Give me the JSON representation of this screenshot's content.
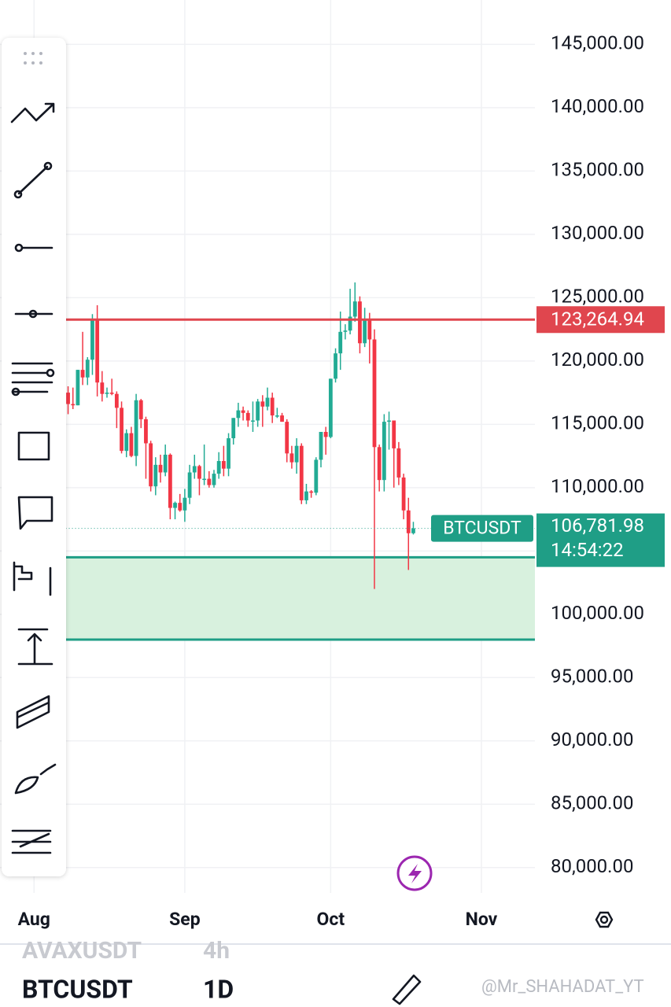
{
  "chart_data": {
    "type": "candlestick",
    "symbol": "BTCUSDT",
    "countdown": "14:54:22",
    "up_color": "#22ab94",
    "down_color": "#f23645",
    "x": [
      7,
      8,
      9,
      10,
      11,
      12,
      13,
      14,
      15,
      16,
      17,
      18,
      19,
      20,
      21,
      22,
      23,
      24,
      25,
      26,
      27,
      28,
      29,
      30,
      31,
      32,
      33,
      34,
      35,
      36,
      37,
      38,
      39,
      40,
      41,
      42,
      43,
      44,
      45,
      46,
      47,
      48,
      49,
      50,
      51,
      52,
      53,
      54,
      55,
      56,
      57,
      58,
      59,
      60,
      61,
      62,
      63,
      64,
      65,
      66,
      67,
      68,
      69,
      70,
      71,
      72,
      73,
      74,
      75,
      76,
      77,
      78
    ],
    "open": [
      117500,
      116600,
      116500,
      119300,
      118700,
      120100,
      123300,
      118300,
      117400,
      117500,
      117400,
      116300,
      112900,
      114300,
      112500,
      116900,
      115400,
      113500,
      110100,
      111800,
      111200,
      112600,
      108400,
      108800,
      108200,
      109200,
      111200,
      111700,
      110700,
      110700,
      110200,
      111100,
      112100,
      111500,
      113900,
      115500,
      116100,
      115900,
      115300,
      115300,
      116800,
      116400,
      117100,
      115700,
      115700,
      115200,
      112700,
      112000,
      113300,
      109000,
      109700,
      109600,
      112200,
      114400,
      114000,
      118600,
      120600,
      122300,
      122400,
      123500,
      124700,
      121400,
      123300,
      121700,
      113200,
      110600,
      115200,
      115300,
      113100,
      110800,
      108200,
      106400
    ],
    "high": [
      118000,
      117900,
      119300,
      122300,
      120300,
      123700,
      124400,
      119200,
      117900,
      118600,
      117600,
      116800,
      114600,
      114800,
      117400,
      117000,
      115600,
      113700,
      112400,
      112600,
      113400,
      112700,
      108900,
      109500,
      109900,
      111800,
      112600,
      111800,
      113400,
      111300,
      111400,
      112800,
      113300,
      114300,
      115500,
      116700,
      116400,
      116100,
      116800,
      117000,
      117300,
      117900,
      117500,
      116300,
      115900,
      115400,
      113300,
      113900,
      113500,
      110300,
      109800,
      112400,
      114400,
      114800,
      118600,
      121000,
      123900,
      122900,
      125700,
      126200,
      125100,
      124200,
      123800,
      122500,
      113400,
      115800,
      116000,
      115300,
      113600,
      111100,
      109200,
      107300
    ],
    "low": [
      115800,
      116200,
      116500,
      118100,
      118100,
      118900,
      117200,
      116800,
      117100,
      117300,
      114700,
      112700,
      112400,
      112400,
      111700,
      114700,
      110700,
      109700,
      109400,
      110400,
      110900,
      107500,
      107500,
      108100,
      107300,
      108700,
      110700,
      109400,
      110200,
      110000,
      110000,
      110700,
      110900,
      110900,
      113400,
      114800,
      115300,
      114800,
      114400,
      114800,
      114800,
      116100,
      115100,
      115500,
      115200,
      112000,
      111500,
      111100,
      108700,
      108700,
      109200,
      109400,
      111600,
      112600,
      113900,
      118300,
      119300,
      121700,
      122100,
      123100,
      120600,
      121100,
      119800,
      102000,
      109700,
      109700,
      113000,
      110000,
      110200,
      107500,
      103500,
      106300
    ],
    "close": [
      116600,
      116500,
      119300,
      118700,
      120100,
      123300,
      118300,
      117400,
      117500,
      117400,
      116300,
      112900,
      114300,
      112500,
      116900,
      115400,
      113500,
      110100,
      111800,
      111200,
      112600,
      108400,
      108800,
      108200,
      109200,
      111200,
      111700,
      110700,
      110700,
      110200,
      111100,
      112100,
      111500,
      113900,
      115500,
      116100,
      115900,
      115300,
      115300,
      116800,
      116400,
      117100,
      115700,
      115700,
      115200,
      112700,
      112000,
      113300,
      109000,
      109700,
      109600,
      112200,
      114400,
      114000,
      118600,
      120600,
      122300,
      122400,
      123500,
      124700,
      121400,
      123300,
      121700,
      113200,
      110600,
      115200,
      115300,
      113100,
      110800,
      108200,
      106400,
      106781.98
    ],
    "xlim": [
      -7,
      103
    ],
    "xticks": [
      {
        "value": 0,
        "label": "Aug"
      },
      {
        "value": 31,
        "label": "Sep"
      },
      {
        "value": 61,
        "label": "Oct"
      },
      {
        "value": 92,
        "label": "Nov"
      }
    ],
    "ylim": [
      78000,
      148500
    ],
    "yticks": [
      {
        "value": 80000,
        "label": "80,000.00"
      },
      {
        "value": 85000,
        "label": "85,000.00"
      },
      {
        "value": 90000,
        "label": "90,000.00"
      },
      {
        "value": 95000,
        "label": "95,000.00"
      },
      {
        "value": 100000,
        "label": "100,000.00"
      },
      {
        "value": 105000,
        "label": "105,000.00"
      },
      {
        "value": 110000,
        "label": "110,000.00"
      },
      {
        "value": 115000,
        "label": "115,000.00"
      },
      {
        "value": 120000,
        "label": "120,000.00"
      },
      {
        "value": 125000,
        "label": "125,000.00"
      },
      {
        "value": 130000,
        "label": "130,000.00"
      },
      {
        "value": 135000,
        "label": "135,000.00"
      },
      {
        "value": 140000,
        "label": "140,000.00"
      },
      {
        "value": 145000,
        "label": "145,000.00"
      }
    ],
    "grid": true,
    "price_line": {
      "value": 123264.94,
      "label": "123,264.94",
      "color": "#e0464e"
    },
    "current_price": {
      "value": 106781.98,
      "label": "106,781.98",
      "color": "#1f9e86"
    },
    "zone": {
      "range": [
        98000,
        104500
      ],
      "fill": "#d8f1de",
      "border": "#1f9e86"
    }
  },
  "ui": {
    "watchlist": [
      {
        "symbol": "AVAXUSDT",
        "interval": "4h"
      },
      {
        "symbol": "BTCUSDT",
        "interval": "1D"
      }
    ],
    "watermark": "@Mr_SHAHADAT_YT"
  }
}
